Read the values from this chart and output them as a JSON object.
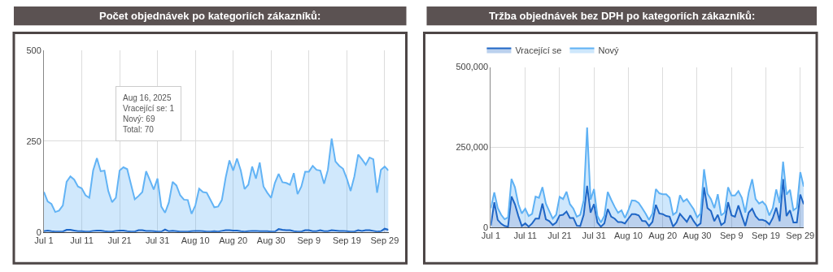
{
  "chart_data": [
    {
      "type": "area",
      "stacked": true,
      "title": "Počet objednávek po kategoriích zákazníků:",
      "legend": false,
      "grid": true,
      "x": [
        "2025-07-01",
        "2025-07-02",
        "2025-07-03",
        "2025-07-04",
        "2025-07-05",
        "2025-07-06",
        "2025-07-07",
        "2025-07-08",
        "2025-07-09",
        "2025-07-10",
        "2025-07-11",
        "2025-07-12",
        "2025-07-13",
        "2025-07-14",
        "2025-07-15",
        "2025-07-16",
        "2025-07-17",
        "2025-07-18",
        "2025-07-19",
        "2025-07-20",
        "2025-07-21",
        "2025-07-22",
        "2025-07-23",
        "2025-07-24",
        "2025-07-25",
        "2025-07-26",
        "2025-07-27",
        "2025-07-28",
        "2025-07-29",
        "2025-07-30",
        "2025-07-31",
        "2025-08-01",
        "2025-08-02",
        "2025-08-03",
        "2025-08-04",
        "2025-08-05",
        "2025-08-06",
        "2025-08-07",
        "2025-08-08",
        "2025-08-09",
        "2025-08-10",
        "2025-08-11",
        "2025-08-12",
        "2025-08-13",
        "2025-08-14",
        "2025-08-15",
        "2025-08-16",
        "2025-08-17",
        "2025-08-18",
        "2025-08-19",
        "2025-08-20",
        "2025-08-21",
        "2025-08-22",
        "2025-08-23",
        "2025-08-24",
        "2025-08-25",
        "2025-08-26",
        "2025-08-27",
        "2025-08-28",
        "2025-08-29",
        "2025-08-30",
        "2025-08-31",
        "2025-09-01",
        "2025-09-02",
        "2025-09-03",
        "2025-09-04",
        "2025-09-05",
        "2025-09-06",
        "2025-09-07",
        "2025-09-08",
        "2025-09-09",
        "2025-09-10",
        "2025-09-11",
        "2025-09-12",
        "2025-09-13",
        "2025-09-14",
        "2025-09-15",
        "2025-09-16",
        "2025-09-17",
        "2025-09-18",
        "2025-09-19",
        "2025-09-20",
        "2025-09-21",
        "2025-09-22",
        "2025-09-23",
        "2025-09-24",
        "2025-09-25",
        "2025-09-26",
        "2025-09-27",
        "2025-09-28",
        "2025-09-29",
        "2025-09-30"
      ],
      "xlim": [
        "2025-07-01",
        "2025-09-30"
      ],
      "xticks": [
        {
          "value": "2025-07-01",
          "label": "Jul 1"
        },
        {
          "value": "2025-07-11",
          "label": "Jul 11"
        },
        {
          "value": "2025-07-21",
          "label": "Jul 21"
        },
        {
          "value": "2025-07-31",
          "label": "Jul 31"
        },
        {
          "value": "2025-08-10",
          "label": "Aug 10"
        },
        {
          "value": "2025-08-20",
          "label": "Aug 20"
        },
        {
          "value": "2025-08-30",
          "label": "Aug 30"
        },
        {
          "value": "2025-09-09",
          "label": "Sep 9"
        },
        {
          "value": "2025-09-19",
          "label": "Sep 19"
        },
        {
          "value": "2025-09-29",
          "label": "Sep 29"
        }
      ],
      "ylim": [
        0,
        500
      ],
      "yticks": [
        0,
        250,
        500
      ],
      "series": [
        {
          "color": "#1a66c9",
          "values": [
            2,
            4,
            2,
            1,
            1,
            1,
            6,
            6,
            4,
            2,
            2,
            1,
            1,
            3,
            4,
            4,
            2,
            1,
            1,
            3,
            4,
            4,
            2,
            1,
            1,
            5,
            5,
            3,
            3,
            2,
            1,
            1,
            7,
            2,
            3,
            2,
            1,
            1,
            1,
            2,
            3,
            3,
            2,
            1,
            1,
            2,
            1,
            3,
            5,
            5,
            4,
            4,
            2,
            1,
            2,
            3,
            3,
            2,
            2,
            2,
            1,
            1,
            8,
            6,
            5,
            5,
            2,
            1,
            1,
            5,
            5,
            2,
            2,
            5,
            2,
            2,
            5,
            4,
            3,
            3,
            2,
            1,
            1,
            5,
            3,
            5,
            5,
            3,
            1,
            2,
            9,
            6
          ]
        },
        {
          "color": "#62b3f5",
          "values": [
            108,
            80,
            75,
            54,
            58,
            72,
            132,
            147,
            140,
            123,
            118,
            100,
            93,
            166,
            199,
            163,
            167,
            112,
            81,
            91,
            165,
            174,
            171,
            130,
            89,
            94,
            105,
            164,
            null,
            115,
            146,
            69,
            46,
            79,
            135,
            126,
            100,
            88,
            87,
            48,
            70,
            116,
            108,
            107,
            87,
            66,
            69,
            85,
            144,
            192,
            165,
            198,
            167,
            117,
            128,
            177,
            144,
            189,
            123,
            106,
            93,
            134,
            152,
            131,
            130,
            125,
            160,
            103,
            124,
            161,
            161,
            180,
            169,
            164,
            131,
            169,
            252,
            190,
            179,
            171,
            145,
            112,
            152,
            208,
            197,
            180,
            200,
            197,
            107,
            169,
            171,
            163
          ]
        }
      ],
      "annotations": [
        "Aug 16, 2025\nVracející se: 1\nNový: 69\nTotal: 70"
      ]
    },
    {
      "type": "area",
      "stacked": true,
      "title": "Tržba objednávek bez DPH po kategoriích zákazníků:",
      "legend": "top left",
      "grid": true,
      "x": [
        "2025-07-01",
        "2025-07-02",
        "2025-07-03",
        "2025-07-04",
        "2025-07-05",
        "2025-07-06",
        "2025-07-07",
        "2025-07-08",
        "2025-07-09",
        "2025-07-10",
        "2025-07-11",
        "2025-07-12",
        "2025-07-13",
        "2025-07-14",
        "2025-07-15",
        "2025-07-16",
        "2025-07-17",
        "2025-07-18",
        "2025-07-19",
        "2025-07-20",
        "2025-07-21",
        "2025-07-22",
        "2025-07-23",
        "2025-07-24",
        "2025-07-25",
        "2025-07-26",
        "2025-07-27",
        "2025-07-28",
        "2025-07-29",
        "2025-07-30",
        "2025-07-31",
        "2025-08-01",
        "2025-08-02",
        "2025-08-03",
        "2025-08-04",
        "2025-08-05",
        "2025-08-06",
        "2025-08-07",
        "2025-08-08",
        "2025-08-09",
        "2025-08-10",
        "2025-08-11",
        "2025-08-12",
        "2025-08-13",
        "2025-08-14",
        "2025-08-15",
        "2025-08-16",
        "2025-08-17",
        "2025-08-18",
        "2025-08-19",
        "2025-08-20",
        "2025-08-21",
        "2025-08-22",
        "2025-08-23",
        "2025-08-24",
        "2025-08-25",
        "2025-08-26",
        "2025-08-27",
        "2025-08-28",
        "2025-08-29",
        "2025-08-30",
        "2025-08-31",
        "2025-09-01",
        "2025-09-02",
        "2025-09-03",
        "2025-09-04",
        "2025-09-05",
        "2025-09-06",
        "2025-09-07",
        "2025-09-08",
        "2025-09-09",
        "2025-09-10",
        "2025-09-11",
        "2025-09-12",
        "2025-09-13",
        "2025-09-14",
        "2025-09-15",
        "2025-09-16",
        "2025-09-17",
        "2025-09-18",
        "2025-09-19",
        "2025-09-20",
        "2025-09-21",
        "2025-09-22",
        "2025-09-23",
        "2025-09-24",
        "2025-09-25",
        "2025-09-26",
        "2025-09-27",
        "2025-09-28",
        "2025-09-29",
        "2025-09-30"
      ],
      "xlim": [
        "2025-07-01",
        "2025-09-30"
      ],
      "xticks": [
        {
          "value": "2025-07-01",
          "label": "Jul 1"
        },
        {
          "value": "2025-07-11",
          "label": "Jul 11"
        },
        {
          "value": "2025-07-21",
          "label": "Jul 21"
        },
        {
          "value": "2025-07-31",
          "label": "Jul 31"
        },
        {
          "value": "2025-08-10",
          "label": "Aug 10"
        },
        {
          "value": "2025-08-20",
          "label": "Aug 20"
        },
        {
          "value": "2025-08-30",
          "label": "Aug 30"
        },
        {
          "value": "2025-09-09",
          "label": "Sep 9"
        },
        {
          "value": "2025-09-19",
          "label": "Sep 19"
        },
        {
          "value": "2025-09-29",
          "label": "Sep 29"
        }
      ],
      "ylim": [
        0,
        500000
      ],
      "yticks": [
        0,
        {
          "value": 250000,
          "label": "250,000"
        },
        {
          "value": 500000,
          "label": "500,000"
        }
      ],
      "series": [
        {
          "name": "Vracející se",
          "color": "#1f66c6",
          "values": [
            5000,
            78000,
            23000,
            11000,
            4000,
            2000,
            96000,
            72000,
            35000,
            4000,
            12000,
            2000,
            12000,
            27000,
            27000,
            74000,
            25000,
            19000,
            7000,
            15000,
            37000,
            39000,
            49000,
            29000,
            29000,
            5000,
            4000,
            39000,
            129000,
            46000,
            72000,
            15000,
            2000,
            12000,
            57000,
            33000,
            27000,
            16000,
            16000,
            12000,
            27000,
            41000,
            41000,
            37000,
            20000,
            19000,
            4000,
            17000,
            70000,
            43000,
            41000,
            35000,
            33000,
            2000,
            15000,
            42000,
            29000,
            17000,
            37000,
            19000,
            4000,
            12000,
            125000,
            60000,
            51000,
            19000,
            39000,
            7000,
            15000,
            78000,
            37000,
            33000,
            68000,
            35000,
            4000,
            46000,
            58000,
            35000,
            23000,
            23000,
            19000,
            9000,
            29000,
            61000,
            19000,
            150000,
            35000,
            53000,
            15000,
            15000,
            102000,
            72000
          ]
        },
        {
          "name": "Nový",
          "color": "#5eb1f4",
          "values": [
            55000,
            31000,
            37000,
            28000,
            21000,
            29000,
            55000,
            53000,
            37000,
            39000,
            46000,
            33000,
            30000,
            69000,
            65000,
            51000,
            49000,
            31000,
            20000,
            24000,
            58000,
            49000,
            62000,
            43000,
            29000,
            28000,
            35000,
            45000,
            182000,
            40000,
            47000,
            20000,
            13000,
            23000,
            53000,
            53000,
            37000,
            29000,
            37000,
            17000,
            26000,
            43000,
            42000,
            39000,
            40000,
            24000,
            19000,
            26000,
            49000,
            63000,
            62000,
            68000,
            59000,
            37000,
            32000,
            58000,
            51000,
            71000,
            35000,
            37000,
            27000,
            31000,
            56000,
            45000,
            37000,
            41000,
            64000,
            30000,
            31000,
            47000,
            62000,
            66000,
            45000,
            57000,
            42000,
            63000,
            92000,
            53000,
            51000,
            57000,
            49000,
            28000,
            31000,
            57000,
            57000,
            55000,
            67000,
            64000,
            38000,
            46000,
            70000,
            55000
          ]
        }
      ]
    }
  ]
}
